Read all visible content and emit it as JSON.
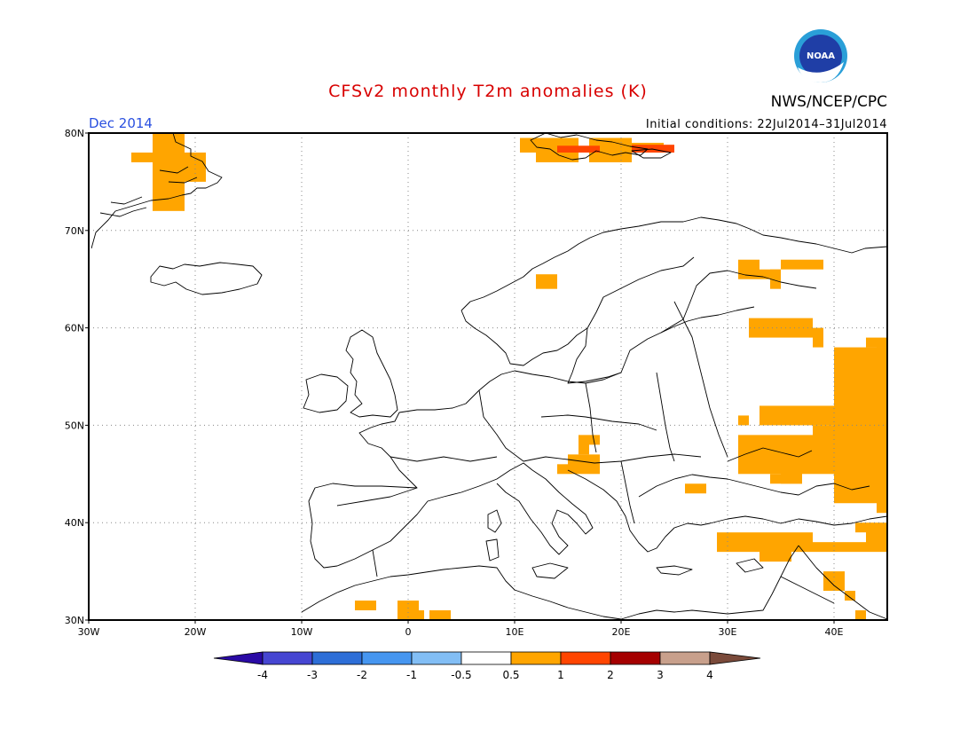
{
  "title": "CFSv2 monthly T2m anomalies (K)",
  "agency": "NWS/NCEP/CPC",
  "logo_text": "NOAA",
  "valid_month": "Dec 2014",
  "initial_conditions": "Initial conditions: 22Jul2014–31Jul2014",
  "colors": {
    "title": "#d80000",
    "month_label": "#2a50e0",
    "anomaly_0_5_to_1": "#ffa500",
    "anomaly_1_to_2": "#ff4500"
  },
  "chart_data": {
    "type": "heatmap",
    "title": "CFSv2 monthly T2m anomalies (K)",
    "units": "K",
    "projection": "lat-lon",
    "lon_range": [
      -30,
      45
    ],
    "lat_range": [
      30,
      80
    ],
    "grid_spacing_deg": 1,
    "x_ticks": [
      "30W",
      "20W",
      "10W",
      "0",
      "10E",
      "20E",
      "30E",
      "40E"
    ],
    "y_ticks": [
      "30N",
      "40N",
      "50N",
      "60N",
      "70N",
      "80N"
    ],
    "gridlines": "dotted",
    "colorbar": {
      "ticks": [
        "-4",
        "-3",
        "-2",
        "-1",
        "-0.5",
        "0.5",
        "1",
        "2",
        "3",
        "4"
      ],
      "colors": [
        "#2a0aa5",
        "#4646d2",
        "#2d6ed7",
        "#4696f0",
        "#82bef5",
        "#ffffff",
        "#ffa500",
        "#ff4500",
        "#a50000",
        "#c8a08c",
        "#7a4a3a"
      ]
    },
    "regions": [
      {
        "category": "0.5 to 1",
        "color": "#ffa500",
        "boxes": [
          [
            -26,
            77,
            -24,
            78
          ],
          [
            -24,
            72,
            -21,
            80
          ],
          [
            -21,
            75,
            -19,
            78
          ],
          [
            -20,
            76,
            -19,
            77
          ],
          [
            10.5,
            78,
            12,
            79.5
          ],
          [
            12,
            77,
            16,
            79.5
          ],
          [
            17,
            77,
            21,
            79.5
          ],
          [
            21,
            78,
            24,
            79
          ],
          [
            12,
            64,
            14,
            65.5
          ],
          [
            31,
            65,
            33,
            67
          ],
          [
            33,
            65,
            35,
            66
          ],
          [
            35,
            66,
            39,
            67
          ],
          [
            34,
            64,
            35,
            66
          ],
          [
            32,
            59,
            38,
            61
          ],
          [
            38,
            58,
            39,
            60
          ],
          [
            31,
            50,
            32,
            51
          ],
          [
            31,
            45,
            38,
            49
          ],
          [
            35,
            44,
            37,
            48
          ],
          [
            34,
            44,
            37,
            45
          ],
          [
            38,
            45,
            40,
            50
          ],
          [
            33,
            50,
            40,
            52
          ],
          [
            40,
            42,
            45,
            58
          ],
          [
            43,
            58,
            45,
            59
          ],
          [
            44,
            41,
            45,
            58
          ],
          [
            15,
            45,
            18,
            47
          ],
          [
            16,
            47,
            17,
            49
          ],
          [
            17,
            48,
            18,
            49
          ],
          [
            14,
            45,
            15,
            46
          ],
          [
            26,
            43,
            28,
            44
          ],
          [
            29,
            37,
            33,
            39
          ],
          [
            33,
            36,
            36,
            39
          ],
          [
            36,
            37,
            38,
            39
          ],
          [
            38,
            37,
            43,
            38
          ],
          [
            43,
            37,
            45,
            40
          ],
          [
            42,
            39,
            43,
            40
          ],
          [
            39,
            33,
            41,
            35
          ],
          [
            41,
            32,
            42,
            33
          ],
          [
            42,
            30,
            43,
            31
          ],
          [
            -5,
            31,
            -3,
            32
          ],
          [
            -1,
            30,
            1,
            32
          ],
          [
            0,
            30,
            1.5,
            31
          ],
          [
            2,
            30,
            4,
            31
          ]
        ]
      },
      {
        "category": "1 to 2",
        "color": "#ff4500",
        "boxes": [
          [
            14,
            78,
            18,
            78.7
          ],
          [
            21,
            78,
            25,
            78.8
          ]
        ]
      }
    ]
  }
}
